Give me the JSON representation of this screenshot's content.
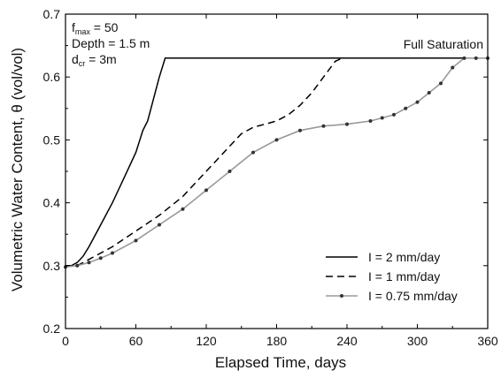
{
  "chart_data": {
    "type": "line",
    "xlabel": "Elapsed Time, days",
    "ylabel": "Volumetric Water Content, θ  (vol/vol)",
    "xlim": [
      0,
      360
    ],
    "ylim": [
      0.2,
      0.7
    ],
    "xticks": [
      0,
      60,
      120,
      180,
      240,
      300,
      360
    ],
    "yticks": [
      0.2,
      0.3,
      0.4,
      0.5,
      0.6,
      0.7
    ],
    "grid": false,
    "legend_position": "bottom-right",
    "annotations": {
      "params": [
        {
          "base": "f",
          "sub": "max",
          "rest": " = 50"
        },
        {
          "base": "Depth = 1.5 m",
          "sub": "",
          "rest": ""
        },
        {
          "base": "d",
          "sub": "cr",
          "rest": " = 3m"
        }
      ],
      "full_saturation": "Full Saturation"
    },
    "series": [
      {
        "name": "I = 2 mm/day",
        "style": "solid",
        "color": "#000000",
        "x": [
          0,
          5,
          10,
          15,
          20,
          30,
          40,
          50,
          60,
          66,
          70,
          75,
          80,
          85,
          360
        ],
        "y": [
          0.3,
          0.3,
          0.305,
          0.315,
          0.33,
          0.365,
          0.4,
          0.44,
          0.48,
          0.515,
          0.53,
          0.565,
          0.6,
          0.63,
          0.63
        ]
      },
      {
        "name": "I = 1 mm/day",
        "style": "dashed",
        "color": "#000000",
        "x": [
          0,
          10,
          20,
          40,
          60,
          80,
          100,
          120,
          140,
          150,
          160,
          170,
          180,
          190,
          200,
          210,
          220,
          230,
          236,
          360
        ],
        "y": [
          0.3,
          0.3,
          0.31,
          0.33,
          0.355,
          0.38,
          0.41,
          0.45,
          0.49,
          0.51,
          0.52,
          0.525,
          0.53,
          0.54,
          0.555,
          0.575,
          0.6,
          0.625,
          0.63,
          0.63
        ]
      },
      {
        "name": "I = 0.75 mm/day",
        "style": "solid-markers",
        "color": "#999999",
        "marker_color": "#333333",
        "x": [
          0,
          10,
          20,
          30,
          40,
          60,
          80,
          100,
          120,
          140,
          160,
          180,
          200,
          220,
          240,
          260,
          270,
          280,
          290,
          300,
          310,
          320,
          330,
          340,
          350,
          360
        ],
        "y": [
          0.298,
          0.3,
          0.305,
          0.312,
          0.32,
          0.34,
          0.365,
          0.39,
          0.42,
          0.45,
          0.48,
          0.5,
          0.515,
          0.522,
          0.525,
          0.53,
          0.535,
          0.54,
          0.55,
          0.56,
          0.575,
          0.59,
          0.615,
          0.63,
          0.63,
          0.63
        ]
      }
    ]
  }
}
